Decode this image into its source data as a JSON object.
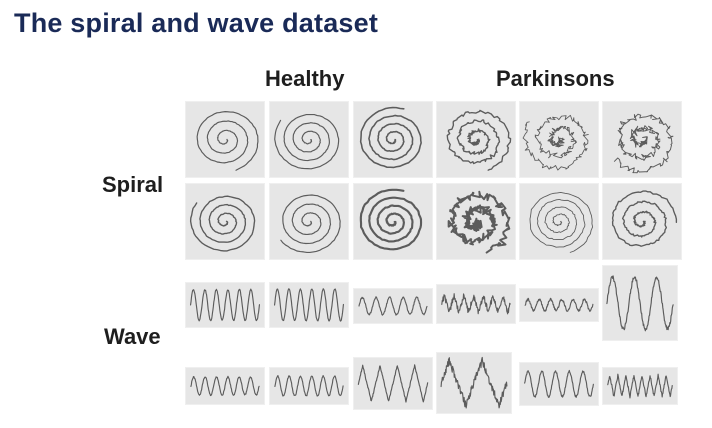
{
  "title": "The spiral and wave dataset",
  "columns": [
    "Healthy",
    "Parkinsons"
  ],
  "rows": [
    "Spiral",
    "Wave"
  ],
  "colors": {
    "title": "#1a2a57",
    "tile_bg": "#e6e6e6",
    "stroke": "#5c5c5c"
  }
}
